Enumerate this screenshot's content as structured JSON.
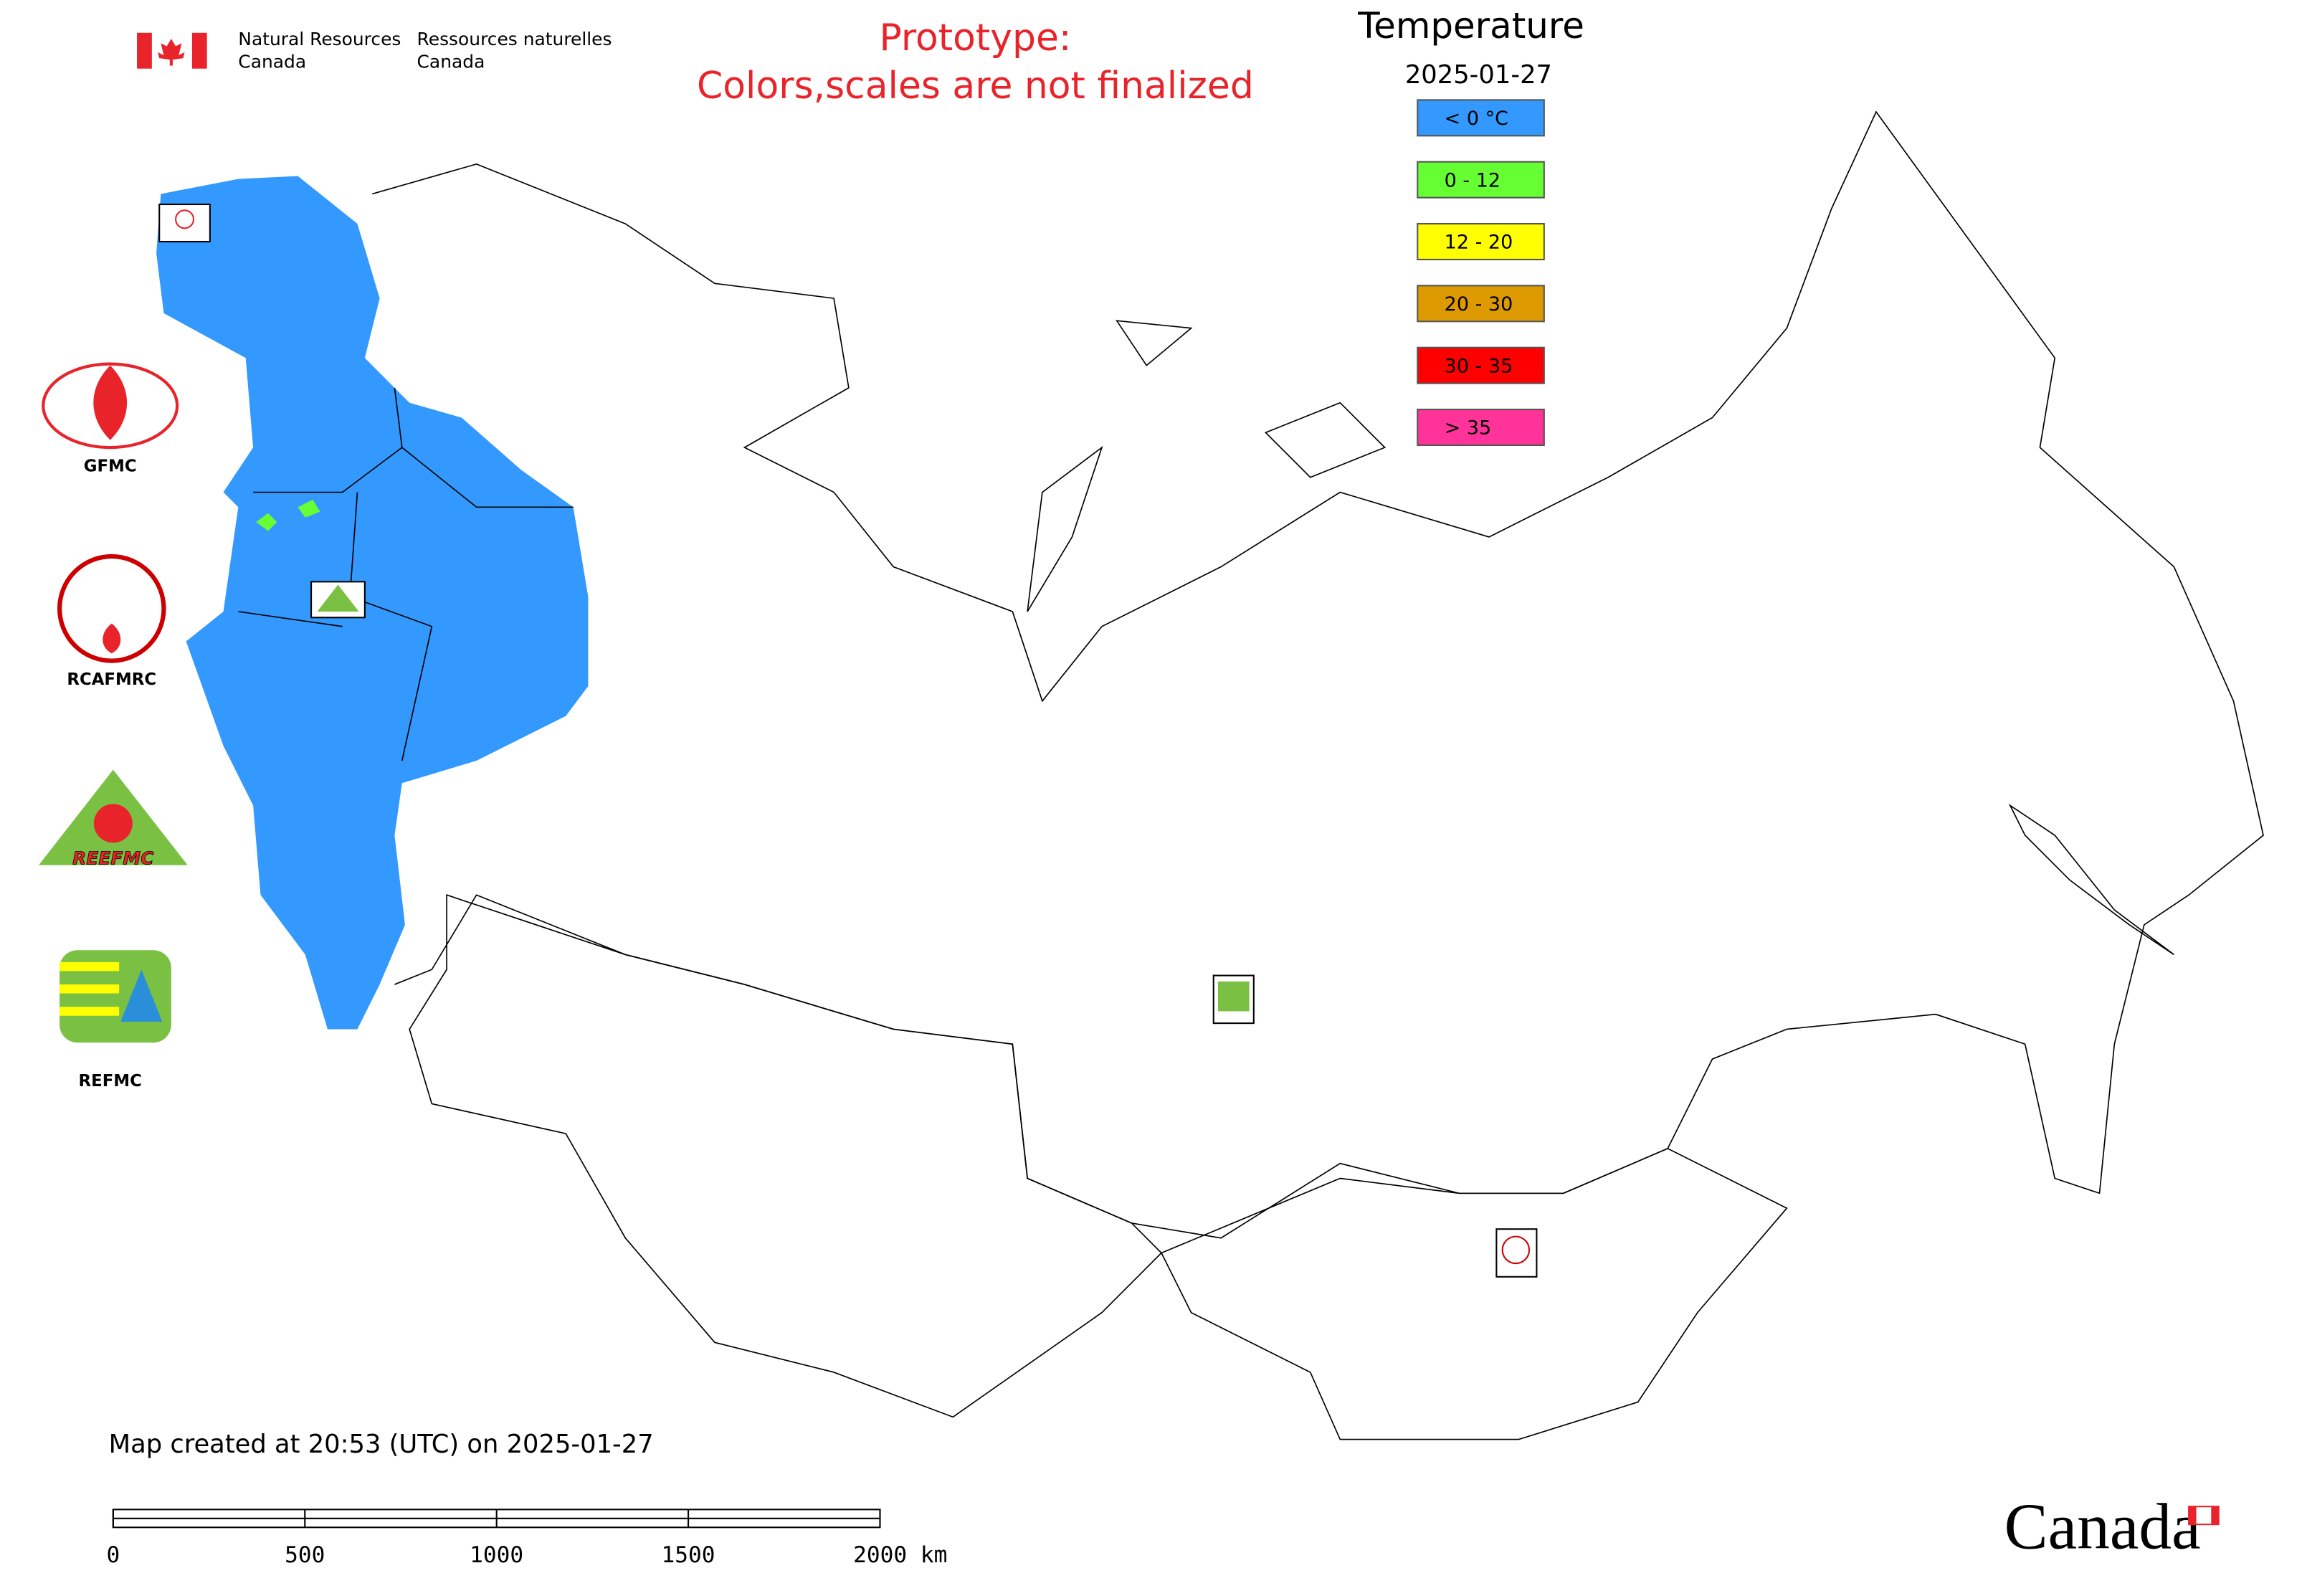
{
  "header": {
    "agency_en": [
      "Natural Resources",
      "Canada"
    ],
    "agency_fr": [
      "Ressources naturelles",
      "Canada"
    ]
  },
  "notice": [
    "Prototype:",
    "Colors,scales are not finalized"
  ],
  "legend": {
    "title": "Temperature",
    "date": "2025-01-27",
    "items": [
      {
        "label": "< 0 °C",
        "color": "#3399ff"
      },
      {
        "label": "0 - 12",
        "color": "#66ff33"
      },
      {
        "label": "12 - 20",
        "color": "#ffff00"
      },
      {
        "label": "20 - 30",
        "color": "#dd9900"
      },
      {
        "label": "30 - 35",
        "color": "#ff0000"
      },
      {
        "label": "> 35",
        "color": "#ff3399"
      }
    ]
  },
  "logos": [
    "GFMC",
    "RCAFMRC",
    "REEFMC",
    "REFMC"
  ],
  "footer": "Map created at 20:53 (UTC) on 2025-01-27",
  "scale_bar": {
    "ticks": [
      0,
      500,
      1000,
      1500,
      {
        "value": 2000,
        "label": "2000 km"
      }
    ]
  },
  "wordmark": "Canada"
}
